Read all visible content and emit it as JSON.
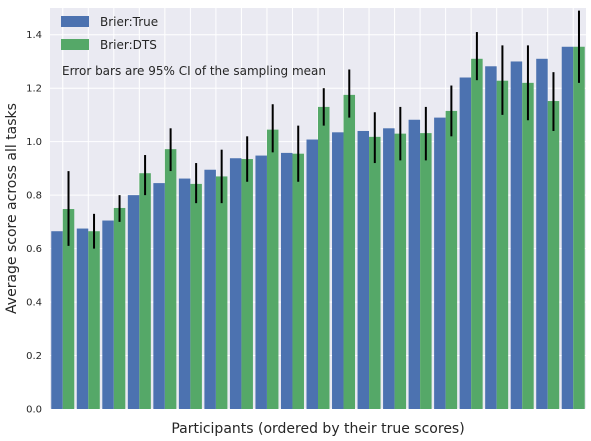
{
  "chart_data": {
    "type": "bar",
    "title": "",
    "xlabel": "Participants (ordered by their true scores)",
    "ylabel": "Average score across all tasks",
    "ylim": [
      0,
      1.5
    ],
    "yticks": [
      "0.0",
      "0.2",
      "0.4",
      "0.6",
      "0.8",
      "1.0",
      "1.2",
      "1.4"
    ],
    "grid": true,
    "legend_position": "top-left",
    "annotation": "Error bars are 95% CI of the sampling mean",
    "series": [
      {
        "name": "Brier:True",
        "color": "#4c72b0",
        "values": [
          0.665,
          0.675,
          0.705,
          0.8,
          0.845,
          0.862,
          0.895,
          0.938,
          0.948,
          0.958,
          1.008,
          1.035,
          1.04,
          1.05,
          1.082,
          1.09,
          1.24,
          1.282,
          1.3,
          1.31,
          1.355
        ]
      },
      {
        "name": "Brier:DTS",
        "color": "#55a868",
        "values": [
          0.748,
          0.665,
          0.752,
          0.882,
          0.972,
          0.842,
          0.87,
          0.935,
          1.045,
          0.955,
          1.13,
          1.175,
          1.018,
          1.03,
          1.032,
          1.115,
          1.31,
          1.228,
          1.22,
          1.152,
          1.355
        ],
        "ci_low": [
          0.61,
          0.6,
          0.7,
          0.8,
          0.89,
          0.77,
          0.77,
          0.85,
          0.96,
          0.85,
          1.06,
          1.09,
          0.92,
          0.93,
          0.93,
          1.02,
          1.23,
          1.1,
          1.08,
          1.04,
          1.22
        ],
        "ci_high": [
          0.89,
          0.73,
          0.8,
          0.95,
          1.05,
          0.92,
          0.97,
          1.02,
          1.14,
          1.06,
          1.2,
          1.27,
          1.11,
          1.13,
          1.13,
          1.21,
          1.41,
          1.36,
          1.36,
          1.26,
          1.49
        ]
      }
    ],
    "background_color": "#eaeaf2",
    "grid_color": "#ffffff",
    "errorbar_color": "#000000"
  }
}
